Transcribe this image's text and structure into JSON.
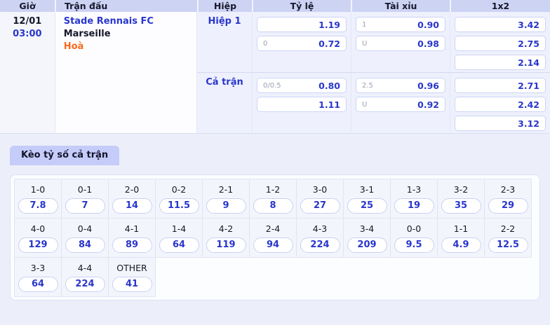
{
  "colors": {
    "accent_blue": "#2936cc",
    "draw_orange": "#fb6a1f",
    "header_bg": "#ccd3f3",
    "tab_bg": "#c5ccf9",
    "section_bg": "#eef1fd",
    "panel_bg": "#fcfdff"
  },
  "odds_table": {
    "headers": {
      "time": "Giờ",
      "match": "Trận đấu",
      "period": "Hiệp",
      "handicap": "Tỷ lệ",
      "over_under": "Tài xỉu",
      "one_x_two": "1x2"
    },
    "match": {
      "date": "12/01",
      "kickoff": "03:00",
      "home": "Stade Rennais FC",
      "away": "Marseille",
      "draw_label": "Hoà"
    },
    "sections": [
      {
        "period": "Hiệp 1",
        "handicap": [
          {
            "line": "",
            "odds": "1.19"
          },
          {
            "line": "0",
            "odds": "0.72"
          }
        ],
        "over_under": [
          {
            "line": "1",
            "odds": "0.90"
          },
          {
            "line": "U",
            "odds": "0.98"
          }
        ],
        "one_x_two": [
          "3.42",
          "2.75",
          "2.14"
        ]
      },
      {
        "period": "Cả trận",
        "handicap": [
          {
            "line": "0/0.5",
            "odds": "0.80"
          },
          {
            "line": "",
            "odds": "1.11"
          }
        ],
        "over_under": [
          {
            "line": "2.5",
            "odds": "0.96"
          },
          {
            "line": "U",
            "odds": "0.92"
          }
        ],
        "one_x_two": [
          "2.71",
          "2.42",
          "3.12"
        ]
      }
    ]
  },
  "score_panel": {
    "tab_label": "Kèo tỷ số cả trận",
    "rows": [
      [
        {
          "score": "1-0",
          "odds": "7.8"
        },
        {
          "score": "0-1",
          "odds": "7"
        },
        {
          "score": "2-0",
          "odds": "14"
        },
        {
          "score": "0-2",
          "odds": "11.5"
        },
        {
          "score": "2-1",
          "odds": "9"
        },
        {
          "score": "1-2",
          "odds": "8"
        },
        {
          "score": "3-0",
          "odds": "27"
        },
        {
          "score": "3-1",
          "odds": "25"
        },
        {
          "score": "1-3",
          "odds": "19"
        },
        {
          "score": "3-2",
          "odds": "35"
        },
        {
          "score": "2-3",
          "odds": "29"
        }
      ],
      [
        {
          "score": "4-0",
          "odds": "129"
        },
        {
          "score": "0-4",
          "odds": "84"
        },
        {
          "score": "4-1",
          "odds": "89"
        },
        {
          "score": "1-4",
          "odds": "64"
        },
        {
          "score": "4-2",
          "odds": "119"
        },
        {
          "score": "2-4",
          "odds": "94"
        },
        {
          "score": "4-3",
          "odds": "224"
        },
        {
          "score": "3-4",
          "odds": "209"
        },
        {
          "score": "0-0",
          "odds": "9.5"
        },
        {
          "score": "1-1",
          "odds": "4.9"
        },
        {
          "score": "2-2",
          "odds": "12.5"
        }
      ],
      [
        {
          "score": "3-3",
          "odds": "64"
        },
        {
          "score": "4-4",
          "odds": "224"
        },
        {
          "score": "OTHER",
          "odds": "41"
        }
      ]
    ]
  }
}
